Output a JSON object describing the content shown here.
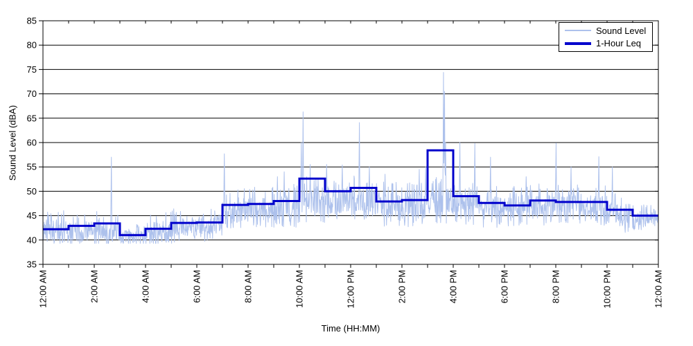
{
  "chart_data": {
    "type": "line",
    "title": "",
    "xlabel": "Time (HH:MM)",
    "ylabel": "Sound Level (dBA)",
    "ylim": [
      35,
      85
    ],
    "yticks": [
      35,
      40,
      45,
      50,
      55,
      60,
      65,
      70,
      75,
      80,
      85
    ],
    "x_hours": 24,
    "xtick_major_every_hours": 2,
    "xtick_minor_every_hours": 1,
    "xtick_labels": [
      "12:00 AM",
      "2:00 AM",
      "4:00 AM",
      "6:00 AM",
      "8:00 AM",
      "10:00 AM",
      "12:00 PM",
      "2:00 PM",
      "4:00 PM",
      "6:00 PM",
      "8:00 PM",
      "10:00 PM",
      "12:00 AM"
    ],
    "grid": "horizontal-solid-black",
    "axis_color": "#000000",
    "background_color": "#ffffff",
    "legend": {
      "position": "top-right",
      "entries": [
        {
          "label": "Sound Level"
        },
        {
          "label": "1-Hour Leq"
        }
      ]
    },
    "series": [
      {
        "name": "Sound Level",
        "type": "noisy_trace",
        "color": "#adc1ec",
        "line_width": 1,
        "points_per_hour": 72,
        "seed": 42,
        "hourly_base_dBA": [
          42.3,
          41.8,
          42.0,
          40.6,
          41.8,
          42.7,
          43.0,
          46.3,
          46.5,
          46.8,
          48.0,
          48.3,
          48.3,
          47.0,
          47.0,
          47.8,
          47.3,
          46.6,
          46.6,
          47.0,
          47.0,
          46.8,
          45.3,
          44.6
        ],
        "hourly_spread_dBA": [
          2.2,
          2.3,
          2.4,
          1.6,
          2.4,
          2.3,
          2.2,
          2.6,
          2.6,
          2.8,
          3.0,
          2.8,
          2.9,
          2.9,
          3.0,
          3.0,
          2.9,
          2.7,
          2.6,
          2.7,
          2.7,
          2.7,
          2.5,
          1.8
        ],
        "floor_dBA": 39.3,
        "spikes_minute_dBA": [
          [
            160,
            57.0
          ],
          [
            424,
            57.7
          ],
          [
            548,
            53.0
          ],
          [
            564,
            54.0
          ],
          [
            604,
            60.0
          ],
          [
            608,
            66.3
          ],
          [
            625,
            55.5
          ],
          [
            663,
            55.5
          ],
          [
            700,
            55.4
          ],
          [
            740,
            64.1
          ],
          [
            763,
            55.0
          ],
          [
            800,
            53.5
          ],
          [
            880,
            54.5
          ],
          [
            895,
            55.0
          ],
          [
            937,
            74.4
          ],
          [
            939,
            70.5
          ],
          [
            942,
            60.0
          ],
          [
            975,
            60.0
          ],
          [
            1010,
            59.8
          ],
          [
            1047,
            57.0
          ],
          [
            1130,
            53.0
          ],
          [
            1200,
            59.9
          ],
          [
            1235,
            55.0
          ],
          [
            1300,
            57.1
          ],
          [
            1332,
            55.0
          ]
        ]
      },
      {
        "name": "1-Hour Leq",
        "type": "step_hourly",
        "color": "#0000cc",
        "line_width": 3,
        "values_dBA": [
          42.2,
          42.9,
          43.4,
          41.0,
          42.3,
          43.5,
          43.6,
          47.2,
          47.4,
          48.0,
          52.6,
          50.0,
          50.7,
          47.9,
          48.2,
          58.4,
          49.0,
          47.6,
          47.1,
          48.1,
          47.8,
          47.8,
          46.2,
          45.0
        ]
      }
    ]
  }
}
